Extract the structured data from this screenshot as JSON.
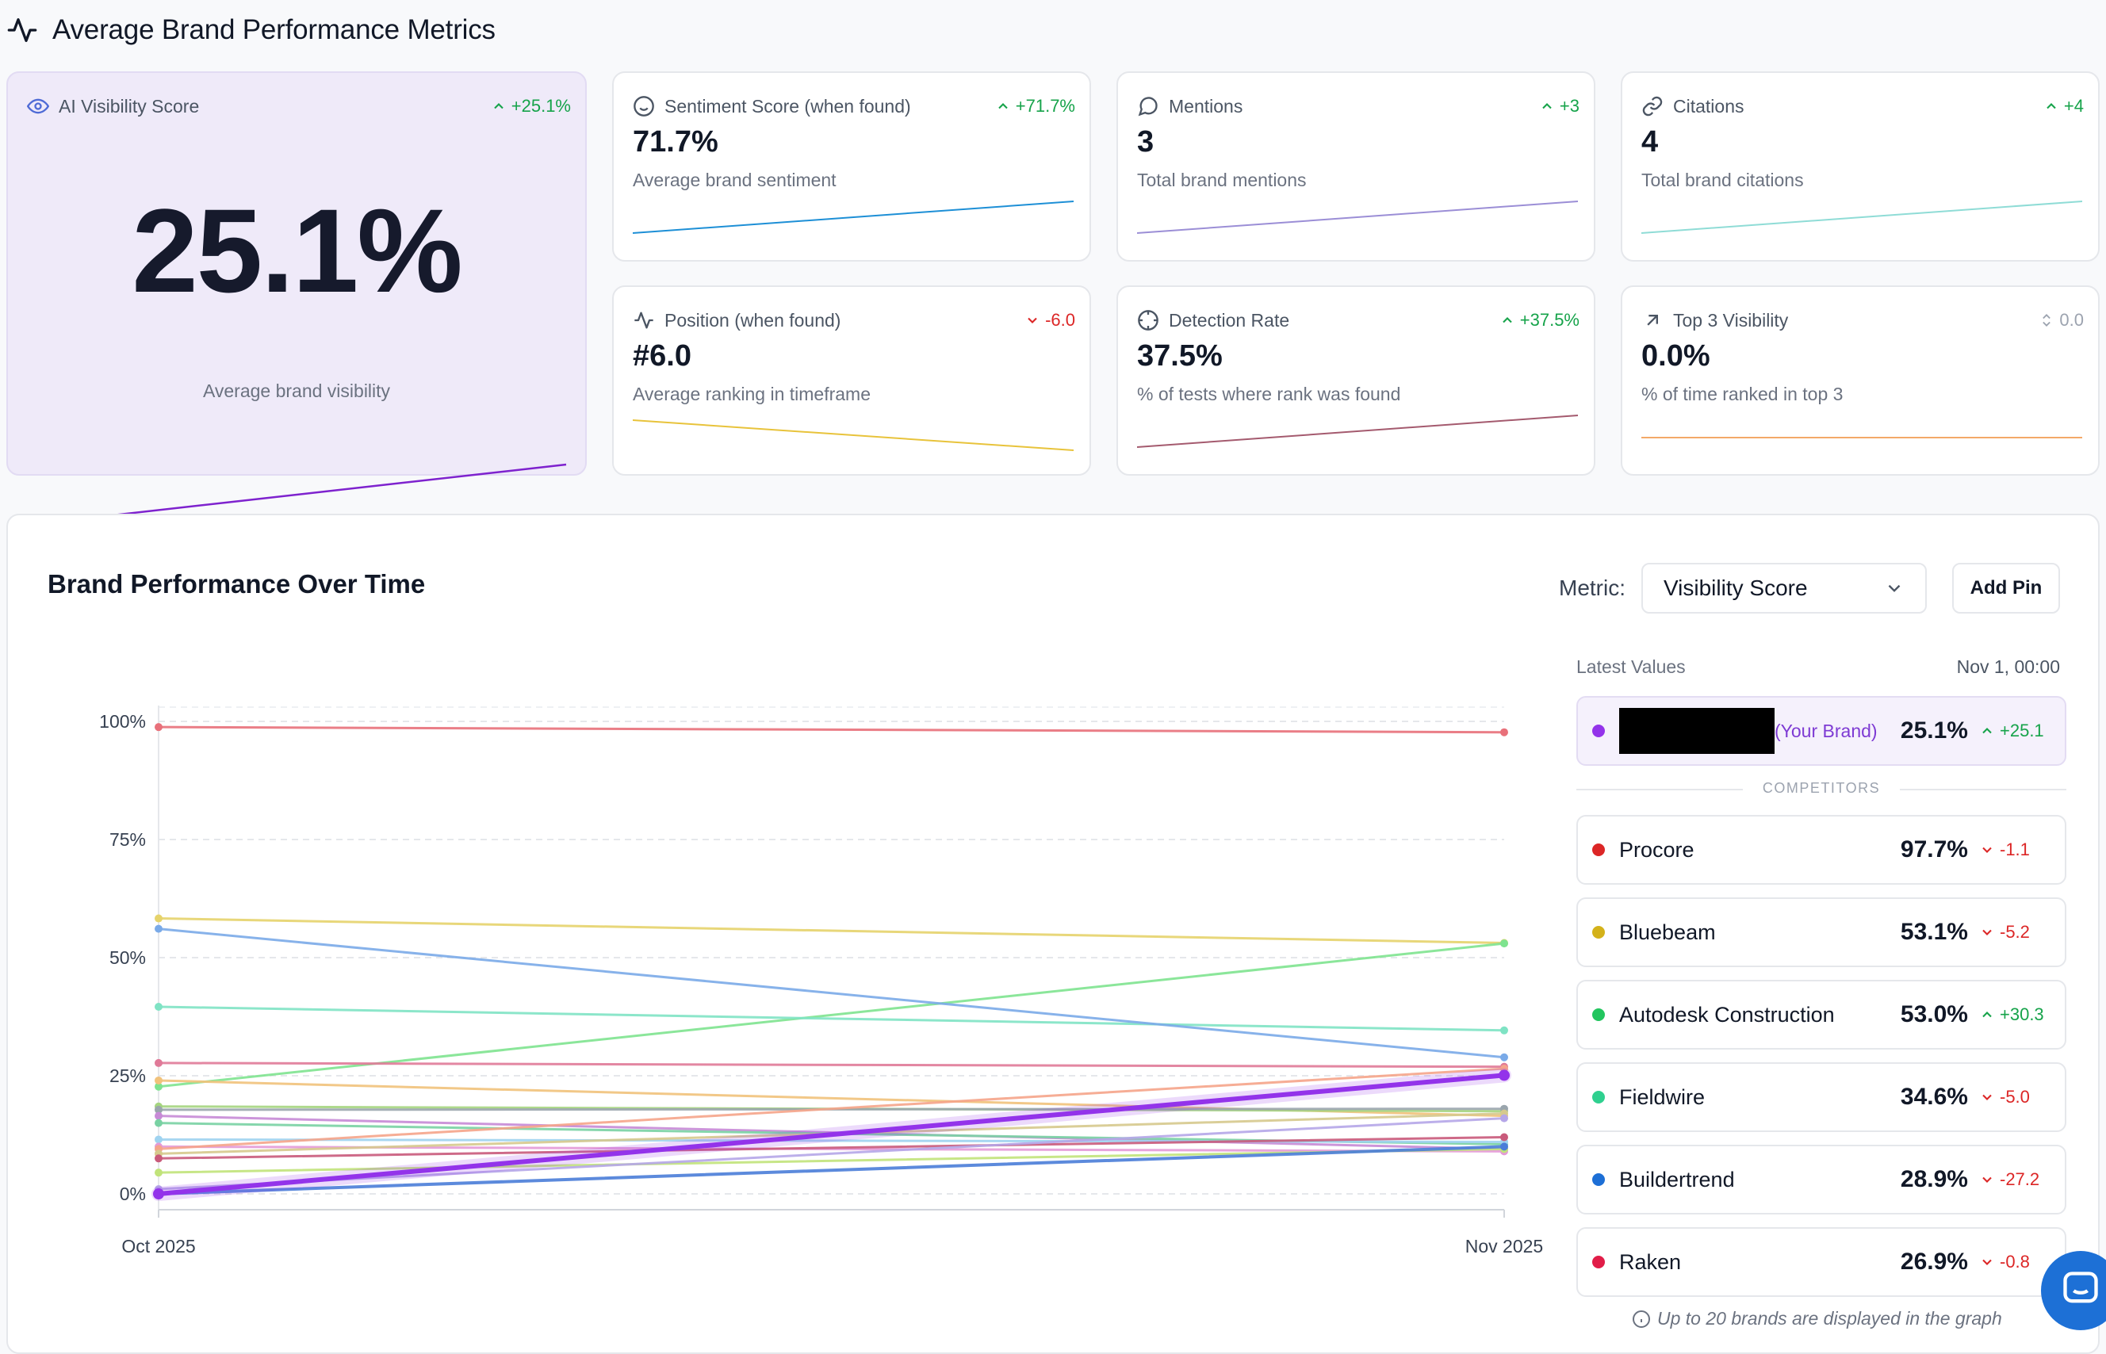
{
  "header": {
    "title": "Average Brand Performance Metrics"
  },
  "cards": {
    "visibility": {
      "label": "AI Visibility Score",
      "delta": "+25.1%",
      "value": "25.1%",
      "sub": "Average brand visibility",
      "spark_color": "#7e22ce"
    },
    "sentiment": {
      "label": "Sentiment Score (when found)",
      "delta": "+71.7%",
      "value": "71.7%",
      "sub": "Average brand sentiment",
      "spark_color": "#1d8fd6"
    },
    "mentions": {
      "label": "Mentions",
      "delta": "+3",
      "value": "3",
      "sub": "Total brand mentions",
      "spark_color": "#9b8ed6"
    },
    "citations": {
      "label": "Citations",
      "delta": "+4",
      "value": "4",
      "sub": "Total brand citations",
      "spark_color": "#8fdcd6"
    },
    "position": {
      "label": "Position (when found)",
      "delta": "-6.0",
      "value": "#6.0",
      "sub": "Average ranking in timeframe",
      "spark_color": "#e8c33b"
    },
    "detection": {
      "label": "Detection Rate",
      "delta": "+37.5%",
      "value": "37.5%",
      "sub": "% of tests where rank was found",
      "spark_color": "#a45a6e"
    },
    "top3": {
      "label": "Top 3 Visibility",
      "delta": "0.0",
      "value": "0.0%",
      "sub": "% of time ranked in top 3",
      "spark_color": "#f3a968"
    }
  },
  "panel": {
    "title": "Brand Performance Over Time",
    "metric_label": "Metric:",
    "metric_value": "Visibility Score",
    "add_pin": "Add Pin",
    "latest_values": "Latest Values",
    "latest_ts": "Nov 1, 00:00",
    "your_brand_tag": "(Your Brand)",
    "competitors_label": "COMPETITORS",
    "note": "Up to 20 brands are displayed in the graph"
  },
  "your_brand": {
    "value": "25.1%",
    "change": "+25.1",
    "dir": "up",
    "color": "#9333ea"
  },
  "competitors": [
    {
      "name": "Procore",
      "value": "97.7%",
      "change": "-1.1",
      "dir": "down",
      "color": "#dc2626"
    },
    {
      "name": "Bluebeam",
      "value": "53.1%",
      "change": "-5.2",
      "dir": "down",
      "color": "#d4b21a"
    },
    {
      "name": "Autodesk Construction",
      "value": "53.0%",
      "change": "+30.3",
      "dir": "up",
      "color": "#22c55e"
    },
    {
      "name": "Fieldwire",
      "value": "34.6%",
      "change": "-5.0",
      "dir": "down",
      "color": "#2fd08f"
    },
    {
      "name": "Buildertrend",
      "value": "28.9%",
      "change": "-27.2",
      "dir": "down",
      "color": "#1d6fd6"
    },
    {
      "name": "Raken",
      "value": "26.9%",
      "change": "-0.8",
      "dir": "down",
      "color": "#e11d48"
    }
  ],
  "chart_data": {
    "type": "line",
    "x": [
      "Oct 2025",
      "Nov 2025"
    ],
    "y_ticks": [
      "0%",
      "25%",
      "50%",
      "75%",
      "100%"
    ],
    "ylim": [
      0,
      100
    ],
    "series": [
      {
        "name": "Procore",
        "values": [
          98.8,
          97.7
        ],
        "color": "#e8707a",
        "width": 3
      },
      {
        "name": "Bluebeam",
        "values": [
          58.3,
          53.1
        ],
        "color": "#e6d36b",
        "width": 3
      },
      {
        "name": "Autodesk Construction",
        "values": [
          22.7,
          53.0
        ],
        "color": "#7ee38f",
        "width": 3
      },
      {
        "name": "Fieldwire",
        "values": [
          39.6,
          34.6
        ],
        "color": "#7fe3c4",
        "width": 3
      },
      {
        "name": "Buildertrend",
        "values": [
          56.1,
          28.9
        ],
        "color": "#7aaae8",
        "width": 3
      },
      {
        "name": "Raken",
        "values": [
          27.7,
          26.9
        ],
        "color": "#e07a98",
        "width": 3
      },
      {
        "values": [
          24.0,
          16.5
        ],
        "color": "#f1c27b",
        "width": 3
      },
      {
        "values": [
          18.5,
          17.5
        ],
        "color": "#a5d57f",
        "width": 3
      },
      {
        "values": [
          17.8,
          18.0
        ],
        "color": "#9aa5ad",
        "width": 3
      },
      {
        "values": [
          16.5,
          9.5
        ],
        "color": "#c78ad6",
        "width": 3
      },
      {
        "values": [
          15.0,
          10.5
        ],
        "color": "#79d1a3",
        "width": 3
      },
      {
        "values": [
          11.5,
          11.0
        ],
        "color": "#9fd3f0",
        "width": 3
      },
      {
        "values": [
          10.0,
          9.0
        ],
        "color": "#e49ad7",
        "width": 3
      },
      {
        "values": [
          9.5,
          26.5
        ],
        "color": "#f5a48a",
        "width": 3
      },
      {
        "values": [
          8.5,
          17.0
        ],
        "color": "#d6c98d",
        "width": 3
      },
      {
        "values": [
          7.5,
          12.0
        ],
        "color": "#c95a7b",
        "width": 3
      },
      {
        "values": [
          4.5,
          9.5
        ],
        "color": "#c1e37a",
        "width": 3
      },
      {
        "values": [
          1.0,
          16.0
        ],
        "color": "#b5a6e8",
        "width": 3
      },
      {
        "values": [
          0.0,
          10.0
        ],
        "color": "#4a7dd8",
        "width": 4
      },
      {
        "name": "Your Brand",
        "values": [
          0.0,
          25.1
        ],
        "color": "#9333ea",
        "width": 6
      }
    ]
  }
}
